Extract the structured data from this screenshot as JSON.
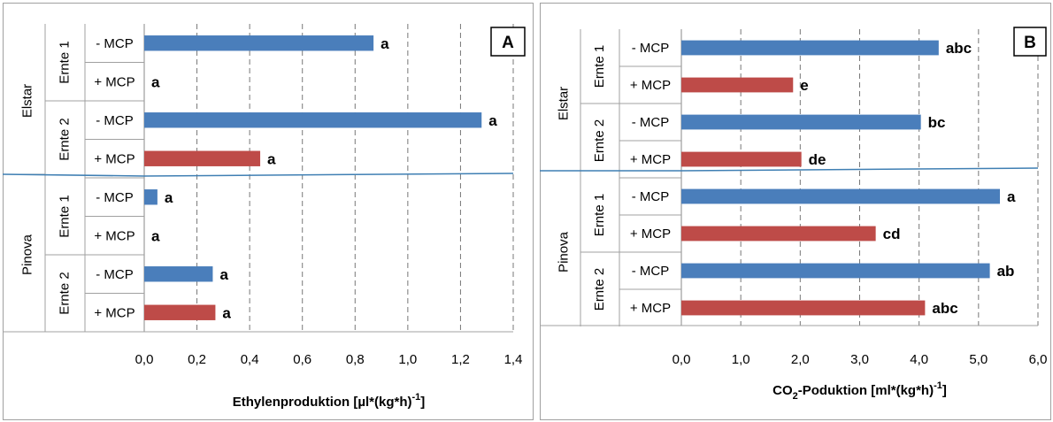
{
  "chart_data": [
    {
      "type": "bar",
      "panel_label": "A",
      "xlabel": "Ethylenproduktion [µl*(kg*h)",
      "xlabel_sup": "-1",
      "xlabel_end": "]",
      "xlim": [
        0,
        1.4
      ],
      "ticks": [
        "0,0",
        "0,2",
        "0,4",
        "0,6",
        "0,8",
        "1,0",
        "1,2",
        "1,4"
      ],
      "grid": true,
      "groups": [
        {
          "name": "Elstar",
          "subgroups": [
            {
              "name": "Ernte 1",
              "bars": [
                {
                  "label": "- MCP",
                  "value": 0.87,
                  "color": "#4a7ebb",
                  "sig": "a"
                },
                {
                  "label": "+ MCP",
                  "value": 0.0,
                  "color": "#be4b48",
                  "sig": "a"
                }
              ]
            },
            {
              "name": "Ernte 2",
              "bars": [
                {
                  "label": "- MCP",
                  "value": 1.28,
                  "color": "#4a7ebb",
                  "sig": "a"
                },
                {
                  "label": "+ MCP",
                  "value": 0.44,
                  "color": "#be4b48",
                  "sig": "a"
                }
              ]
            }
          ]
        },
        {
          "name": "Pinova",
          "subgroups": [
            {
              "name": "Ernte 1",
              "bars": [
                {
                  "label": "- MCP",
                  "value": 0.05,
                  "color": "#4a7ebb",
                  "sig": "a"
                },
                {
                  "label": "+ MCP",
                  "value": 0.0,
                  "color": "#be4b48",
                  "sig": "a"
                }
              ]
            },
            {
              "name": "Ernte 2",
              "bars": [
                {
                  "label": "- MCP",
                  "value": 0.26,
                  "color": "#4a7ebb",
                  "sig": "a"
                },
                {
                  "label": "+ MCP",
                  "value": 0.27,
                  "color": "#be4b48",
                  "sig": "a"
                }
              ]
            }
          ]
        }
      ]
    },
    {
      "type": "bar",
      "panel_label": "B",
      "xlabel_pre": "CO",
      "xlabel_sub": "2",
      "xlabel": "-Poduktion [ml*(kg*h)",
      "xlabel_sup": "-1",
      "xlabel_end": "]",
      "xlim": [
        0,
        6
      ],
      "ticks": [
        "0,0",
        "1,0",
        "2,0",
        "3,0",
        "4,0",
        "5,0",
        "6,0"
      ],
      "grid": true,
      "groups": [
        {
          "name": "Elstar",
          "subgroups": [
            {
              "name": "Ernte 1",
              "bars": [
                {
                  "label": "- MCP",
                  "value": 4.33,
                  "color": "#4a7ebb",
                  "sig": "abc"
                },
                {
                  "label": "+ MCP",
                  "value": 1.88,
                  "color": "#be4b48",
                  "sig": "e"
                }
              ]
            },
            {
              "name": "Ernte 2",
              "bars": [
                {
                  "label": "- MCP",
                  "value": 4.03,
                  "color": "#4a7ebb",
                  "sig": "bc"
                },
                {
                  "label": "+ MCP",
                  "value": 2.02,
                  "color": "#be4b48",
                  "sig": "de"
                }
              ]
            }
          ]
        },
        {
          "name": "Pinova",
          "subgroups": [
            {
              "name": "Ernte 1",
              "bars": [
                {
                  "label": "- MCP",
                  "value": 5.36,
                  "color": "#4a7ebb",
                  "sig": "a"
                },
                {
                  "label": "+ MCP",
                  "value": 3.27,
                  "color": "#be4b48",
                  "sig": "cd"
                }
              ]
            },
            {
              "name": "Ernte 2",
              "bars": [
                {
                  "label": "- MCP",
                  "value": 5.19,
                  "color": "#4a7ebb",
                  "sig": "ab"
                },
                {
                  "label": "+ MCP",
                  "value": 4.1,
                  "color": "#be4b48",
                  "sig": "abc"
                }
              ]
            }
          ]
        }
      ]
    }
  ]
}
